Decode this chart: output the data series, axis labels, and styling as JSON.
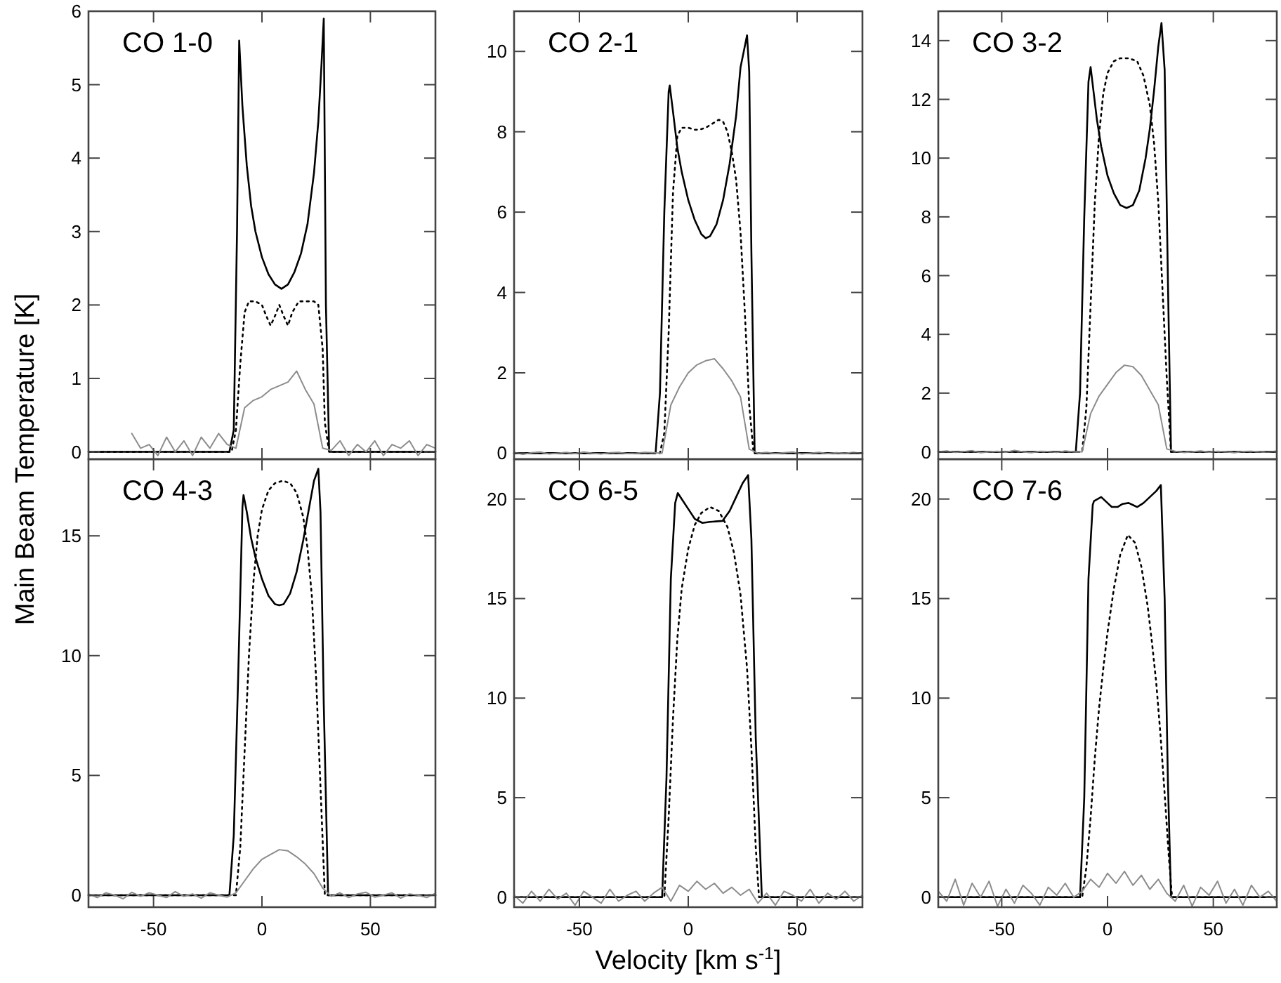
{
  "chart_data": [
    {
      "type": "line",
      "title": "CO 1-0",
      "ylabel": "Main Beam Temperature [K]",
      "xlim": [
        -80,
        80
      ],
      "xticks": [
        -50,
        0,
        50
      ],
      "ylim": [
        -0.1,
        6
      ],
      "yticks": [
        0,
        1,
        2,
        3,
        4,
        5,
        6
      ],
      "tick_labels": "y",
      "series": [
        {
          "color": "#000000",
          "line_style": "solid",
          "x": [
            -80,
            -15,
            -13,
            -11.5,
            -10.5,
            -10,
            -9,
            -7,
            -5,
            -3,
            0,
            3,
            6,
            9,
            12,
            15,
            18,
            21,
            24,
            26,
            27.5,
            28.5,
            29.5,
            31,
            80
          ],
          "values": [
            0,
            0,
            0.3,
            3,
            5.6,
            5.3,
            4.7,
            3.9,
            3.35,
            3.0,
            2.65,
            2.42,
            2.28,
            2.22,
            2.28,
            2.45,
            2.7,
            3.1,
            3.8,
            4.5,
            5.3,
            5.9,
            2,
            0,
            0
          ]
        },
        {
          "color": "#000000",
          "line_style": "dotted",
          "x": [
            -80,
            -14,
            -12,
            -10,
            -8,
            -6,
            -3,
            0,
            2,
            4,
            6,
            8,
            10,
            12,
            14,
            17,
            20,
            24,
            26,
            28,
            29,
            31,
            80
          ],
          "values": [
            0,
            0,
            0.3,
            1.2,
            1.9,
            2.05,
            2.05,
            2.0,
            1.85,
            1.72,
            1.85,
            2.0,
            1.85,
            1.72,
            1.9,
            2.05,
            2.05,
            2.05,
            2.0,
            1.4,
            0.4,
            0,
            0
          ]
        },
        {
          "color": "#8c8c8c",
          "line_style": "solid",
          "x": [
            -60,
            -56,
            -52,
            -48,
            -44,
            -40,
            -36,
            -32,
            -28,
            -24,
            -20,
            -16,
            -12,
            -8,
            -4,
            0,
            4,
            8,
            12,
            16,
            20,
            24,
            28,
            32,
            36,
            40,
            44,
            48,
            52,
            56,
            60,
            64,
            68,
            72,
            76,
            80
          ],
          "values": [
            0.25,
            0.05,
            0.1,
            -0.05,
            0.2,
            0.0,
            0.15,
            -0.05,
            0.2,
            0.05,
            0.25,
            0.1,
            0.05,
            0.6,
            0.7,
            0.75,
            0.85,
            0.9,
            0.95,
            1.1,
            0.85,
            0.65,
            0.05,
            0.02,
            0.15,
            -0.05,
            0.1,
            0.0,
            0.15,
            -0.05,
            0.1,
            0.05,
            0.15,
            -0.05,
            0.1,
            0.05
          ]
        }
      ]
    },
    {
      "type": "line",
      "title": "CO 2-1",
      "xlim": [
        -80,
        80
      ],
      "xticks": [
        -50,
        0,
        50
      ],
      "ylim": [
        -0.15,
        11
      ],
      "yticks": [
        0,
        2,
        4,
        6,
        8,
        10
      ],
      "tick_labels": "y",
      "series": [
        {
          "color": "#000000",
          "line_style": "solid",
          "x": [
            -80,
            -15,
            -13,
            -11,
            -9,
            -8.5,
            -7,
            -5,
            -3,
            0,
            3,
            6,
            8,
            10,
            13,
            16,
            19,
            22,
            24,
            25.5,
            27,
            28,
            29,
            30.5,
            80
          ],
          "values": [
            0,
            0,
            1.5,
            6,
            9.0,
            9.15,
            8.5,
            7.6,
            7.0,
            6.3,
            5.8,
            5.45,
            5.35,
            5.4,
            5.7,
            6.3,
            7.2,
            8.4,
            9.6,
            10.0,
            10.4,
            9.5,
            5,
            0,
            0
          ]
        },
        {
          "color": "#000000",
          "line_style": "dotted",
          "x": [
            -80,
            -13,
            -11,
            -9,
            -7,
            -5,
            -3,
            0,
            3,
            5,
            8,
            11,
            14,
            16,
            18,
            20,
            22,
            24,
            26,
            28,
            30,
            80
          ],
          "values": [
            0,
            0,
            0.5,
            3,
            6.5,
            7.9,
            8.1,
            8.1,
            8.05,
            8.05,
            8.1,
            8.2,
            8.3,
            8.25,
            8.0,
            7.5,
            6.8,
            5.5,
            3.5,
            1.2,
            0,
            0
          ]
        },
        {
          "color": "#8c8c8c",
          "line_style": "solid",
          "x": [
            -80,
            -76,
            -72,
            -68,
            -64,
            -60,
            -56,
            -52,
            -48,
            -44,
            -40,
            -36,
            -32,
            -28,
            -24,
            -20,
            -16,
            -12,
            -8,
            -4,
            0,
            4,
            8,
            12,
            16,
            20,
            24,
            28,
            32,
            36,
            40,
            44,
            48,
            52,
            56,
            60,
            64,
            68,
            72,
            76,
            80
          ],
          "values": [
            0.02,
            -0.03,
            0.01,
            0.03,
            -0.02,
            0.0,
            0.02,
            -0.01,
            0.03,
            0.0,
            -0.02,
            0.01,
            0.02,
            -0.01,
            0.0,
            0.02,
            0.01,
            0.0,
            1.2,
            1.65,
            2.0,
            2.2,
            2.3,
            2.35,
            2.1,
            1.8,
            1.4,
            0.1,
            0.0,
            0.02,
            -0.01,
            0.01,
            0.03,
            -0.02,
            0.0,
            0.02,
            -0.01,
            0.01,
            0.0,
            0.02,
            -0.01
          ]
        }
      ]
    },
    {
      "type": "line",
      "title": "CO 3-2",
      "xlim": [
        -80,
        80
      ],
      "xticks": [
        -50,
        0,
        50
      ],
      "ylim": [
        -0.25,
        15
      ],
      "yticks": [
        0,
        2,
        4,
        6,
        8,
        10,
        12,
        14
      ],
      "tick_labels": "y",
      "series": [
        {
          "color": "#000000",
          "line_style": "solid",
          "x": [
            -80,
            -15,
            -13,
            -11,
            -9,
            -8,
            -7,
            -5,
            -3,
            0,
            3,
            6,
            9,
            12,
            15,
            18,
            20,
            22,
            24,
            25.5,
            27,
            28.5,
            30,
            80
          ],
          "values": [
            0,
            0,
            2,
            8,
            12.6,
            13.1,
            12.5,
            11.3,
            10.4,
            9.4,
            8.8,
            8.4,
            8.3,
            8.4,
            8.9,
            10.0,
            11.0,
            12.3,
            13.8,
            14.6,
            13,
            6,
            0,
            0
          ]
        },
        {
          "color": "#000000",
          "line_style": "dotted",
          "x": [
            -80,
            -12,
            -10,
            -8,
            -6,
            -4,
            -2,
            0,
            3,
            6,
            10,
            14,
            17,
            20,
            22,
            24,
            26,
            28,
            30,
            80
          ],
          "values": [
            0,
            0,
            1.5,
            5,
            8.5,
            10.8,
            12.2,
            12.9,
            13.3,
            13.4,
            13.4,
            13.3,
            12.8,
            11.8,
            10.5,
            8.5,
            5.5,
            2.5,
            0,
            0
          ]
        },
        {
          "color": "#8c8c8c",
          "line_style": "solid",
          "x": [
            -80,
            -76,
            -72,
            -68,
            -64,
            -60,
            -56,
            -52,
            -48,
            -44,
            -40,
            -36,
            -32,
            -28,
            -24,
            -20,
            -16,
            -12,
            -8,
            -4,
            0,
            4,
            8,
            12,
            16,
            20,
            24,
            28,
            32,
            36,
            40,
            44,
            48,
            52,
            56,
            60,
            64,
            68,
            72,
            76,
            80
          ],
          "values": [
            0.0,
            0.03,
            -0.02,
            0.01,
            0.04,
            -0.03,
            0.0,
            0.02,
            -0.01,
            0.05,
            0.0,
            -0.03,
            0.02,
            0.01,
            -0.02,
            0.03,
            0.0,
            0.0,
            1.3,
            1.9,
            2.3,
            2.7,
            2.95,
            2.9,
            2.6,
            2.1,
            1.6,
            0.1,
            0.02,
            -0.02,
            0.0,
            0.03,
            -0.01,
            0.02,
            0.0,
            -0.03,
            0.01,
            0.02,
            0.0,
            -0.01,
            0.03
          ]
        }
      ]
    },
    {
      "type": "line",
      "title": "CO 4-3",
      "xlim": [
        -80,
        80
      ],
      "xticks": [
        -50,
        0,
        50
      ],
      "ylim": [
        -0.5,
        18.2
      ],
      "yticks": [
        0,
        5,
        10,
        15
      ],
      "series": [
        {
          "color": "#000000",
          "line_style": "solid",
          "x": [
            -80,
            -15,
            -13,
            -11,
            -9,
            -8.5,
            -7,
            -5,
            -3,
            0,
            3,
            6,
            8,
            10,
            13,
            16,
            19,
            22,
            24,
            26,
            27,
            28.5,
            30.5,
            80
          ],
          "values": [
            0,
            0,
            2.5,
            9,
            16.2,
            16.7,
            16.0,
            14.9,
            14.1,
            13.2,
            12.5,
            12.15,
            12.1,
            12.15,
            12.6,
            13.5,
            14.8,
            16.3,
            17.3,
            17.8,
            16,
            8,
            0,
            0
          ]
        },
        {
          "color": "#000000",
          "line_style": "dotted",
          "x": [
            -80,
            -12,
            -10,
            -8,
            -6,
            -4,
            -2,
            0,
            3,
            6,
            9.6,
            13,
            16,
            19,
            21,
            23,
            25,
            27,
            29,
            80
          ],
          "values": [
            0,
            0,
            2,
            6,
            10,
            13,
            15,
            16.1,
            16.9,
            17.2,
            17.3,
            17.2,
            16.8,
            15.8,
            14.5,
            12.5,
            9,
            4.5,
            0,
            0
          ]
        },
        {
          "color": "#8c8c8c",
          "line_style": "solid",
          "x": [
            -80,
            -76,
            -72,
            -68,
            -64,
            -60,
            -56,
            -52,
            -48,
            -44,
            -40,
            -36,
            -32,
            -28,
            -24,
            -20,
            -16,
            -12,
            -8,
            -4,
            0,
            4,
            8,
            12,
            16,
            20,
            24,
            28,
            32,
            36,
            40,
            44,
            48,
            52,
            56,
            60,
            64,
            68,
            72,
            76,
            80
          ],
          "values": [
            0.05,
            -0.1,
            0.1,
            0.0,
            -0.15,
            0.12,
            -0.05,
            0.1,
            0.0,
            -0.1,
            0.15,
            -0.05,
            0.05,
            -0.12,
            0.1,
            0.0,
            -0.08,
            0.1,
            0.6,
            1.1,
            1.5,
            1.7,
            1.9,
            1.85,
            1.6,
            1.3,
            0.9,
            0.3,
            -0.05,
            0.1,
            -0.1,
            0.05,
            0.12,
            -0.08,
            0.0,
            0.1,
            -0.12,
            0.05,
            0.0,
            -0.1,
            0.08
          ]
        }
      ]
    },
    {
      "type": "line",
      "title": "CO 6-5",
      "xlabel": "Velocity [km s$^{-1}$]",
      "xlim": [
        -80,
        80
      ],
      "xticks": [
        -50,
        0,
        50
      ],
      "ylim": [
        -0.5,
        22
      ],
      "yticks": [
        0,
        5,
        10,
        15,
        20
      ],
      "series": [
        {
          "color": "#000000",
          "line_style": "solid",
          "x": [
            -80,
            -12,
            -10,
            -8,
            -6,
            -4.8,
            -3,
            0,
            3,
            6.5,
            10,
            15.7,
            19,
            22,
            25,
            27.5,
            29,
            31,
            33.8,
            80
          ],
          "values": [
            0,
            0,
            6,
            16,
            19.8,
            20.3,
            20.0,
            19.5,
            19.0,
            18.8,
            18.85,
            18.9,
            19.4,
            20.1,
            20.8,
            21.2,
            18,
            8,
            0,
            0
          ]
        },
        {
          "color": "#000000",
          "line_style": "dotted",
          "x": [
            -80,
            -11,
            -9,
            -7,
            -5,
            -3,
            0,
            3,
            6,
            10,
            14,
            18,
            21,
            24,
            27,
            29,
            31,
            32.5,
            80
          ],
          "values": [
            0,
            0,
            4,
            9,
            13,
            15.5,
            17.5,
            18.7,
            19.3,
            19.6,
            19.4,
            18.6,
            17.3,
            15.2,
            11.5,
            7.5,
            2.5,
            0,
            0
          ]
        },
        {
          "color": "#8c8c8c",
          "line_style": "solid",
          "x": [
            -80,
            -76,
            -72,
            -68,
            -64,
            -60,
            -56,
            -52,
            -48,
            -44,
            -40,
            -36,
            -32,
            -28,
            -24,
            -20,
            -16,
            -12,
            -8,
            -4,
            0,
            4,
            8,
            12,
            16,
            20,
            24,
            28,
            32,
            36,
            40,
            44,
            48,
            52,
            56,
            60,
            64,
            68,
            72,
            76,
            80
          ],
          "values": [
            0.1,
            -0.3,
            0.3,
            -0.2,
            0.4,
            -0.1,
            0.2,
            -0.4,
            0.3,
            0.0,
            -0.3,
            0.4,
            -0.2,
            0.1,
            0.3,
            -0.2,
            0.2,
            0.5,
            -0.2,
            0.6,
            0.3,
            0.8,
            0.4,
            0.7,
            0.2,
            0.5,
            0.1,
            0.4,
            -0.3,
            0.2,
            -0.4,
            0.3,
            0.1,
            -0.2,
            0.4,
            -0.3,
            0.2,
            -0.1,
            0.3,
            -0.2,
            0.1
          ]
        }
      ]
    },
    {
      "type": "line",
      "title": "CO 7-6",
      "xlim": [
        -80,
        80
      ],
      "xticks": [
        -50,
        0,
        50
      ],
      "ylim": [
        -0.5,
        22
      ],
      "yticks": [
        0,
        5,
        10,
        15,
        20
      ],
      "series": [
        {
          "color": "#000000",
          "line_style": "solid",
          "x": [
            -80,
            -13,
            -11,
            -9,
            -7,
            -6.4,
            -3,
            0,
            2,
            4.7,
            7,
            10,
            12,
            14,
            17,
            20,
            23,
            25.2,
            27,
            28.5,
            30,
            80
          ],
          "values": [
            0,
            0,
            5,
            16,
            19.7,
            19.9,
            20.1,
            19.8,
            19.6,
            19.6,
            19.75,
            19.8,
            19.7,
            19.6,
            19.8,
            20.1,
            20.4,
            20.7,
            15,
            6,
            0,
            0
          ]
        },
        {
          "color": "#000000",
          "line_style": "dotted",
          "x": [
            -80,
            -12,
            -10,
            -8,
            -6,
            -4,
            -2,
            0,
            3,
            6,
            9.6,
            13,
            16,
            19,
            21,
            23,
            25,
            27,
            29,
            30.5,
            80
          ],
          "values": [
            0,
            0,
            1.5,
            4,
            7,
            9.5,
            11.5,
            13.3,
            15.5,
            17.2,
            18.2,
            17.8,
            16.6,
            14.6,
            12.8,
            10.8,
            8.2,
            5.2,
            2,
            0,
            0
          ]
        },
        {
          "color": "#8c8c8c",
          "line_style": "solid",
          "x": [
            -80,
            -76,
            -72,
            -68,
            -64,
            -60,
            -56,
            -52,
            -48,
            -44,
            -40,
            -36,
            -32,
            -28,
            -24,
            -20,
            -16,
            -12,
            -8,
            -4,
            0,
            4,
            8,
            12,
            16,
            20,
            24,
            28,
            32,
            36,
            40,
            44,
            48,
            52,
            56,
            60,
            64,
            68,
            72,
            76,
            80
          ],
          "values": [
            0.3,
            -0.2,
            0.9,
            -0.4,
            0.7,
            0.0,
            0.8,
            -0.45,
            0.4,
            -0.3,
            0.6,
            0.2,
            -0.4,
            0.5,
            0.1,
            0.7,
            0.0,
            0.3,
            0.9,
            0.5,
            1.2,
            0.7,
            1.3,
            0.6,
            1.1,
            0.4,
            0.9,
            0.2,
            -0.2,
            0.6,
            -0.45,
            0.5,
            0.1,
            0.8,
            -0.3,
            0.4,
            -0.4,
            0.6,
            0.0,
            0.3,
            -0.2
          ]
        }
      ]
    }
  ]
}
